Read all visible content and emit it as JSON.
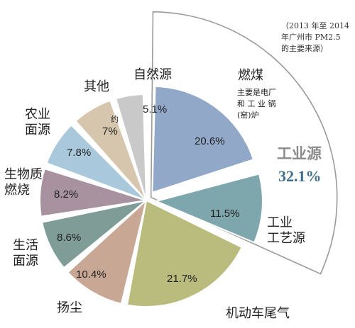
{
  "chart_data": {
    "type": "pie",
    "annotation_lines": [
      "（2013 年至 2014",
      "年广州市 PM2.5",
      "的主要来源）"
    ],
    "group": {
      "name": "工业源",
      "value": "32.1%"
    },
    "slices": [
      {
        "id": "coal",
        "label_lines": [
          "燃煤"
        ],
        "sublabel_lines": [
          "主要是电厂",
          "和 工 业 锅",
          "(窑)炉"
        ],
        "value": 20.6,
        "value_text": "20.6%",
        "color": "#92a8c8",
        "group": true
      },
      {
        "id": "industrial-process",
        "label_lines": [
          "工业",
          "工艺源"
        ],
        "value": 11.5,
        "value_text": "11.5%",
        "color": "#7ea6ad",
        "group": true
      },
      {
        "id": "vehicle-exhaust",
        "label_lines": [
          "机动车尾气"
        ],
        "value": 21.7,
        "value_text": "21.7%",
        "color": "#b9bc7d",
        "group": false
      },
      {
        "id": "dust",
        "label_lines": [
          "扬尘"
        ],
        "value": 10.4,
        "value_text": "10.4%",
        "color": "#c9a795",
        "group": false
      },
      {
        "id": "domestic",
        "label_lines": [
          "生活",
          "面源"
        ],
        "value": 8.6,
        "value_text": "8.6%",
        "color": "#7f9d96",
        "group": false
      },
      {
        "id": "biomass",
        "label_lines": [
          "生物质",
          "燃烧"
        ],
        "value": 8.2,
        "value_text": "8.2%",
        "color": "#a8929f",
        "group": false
      },
      {
        "id": "agriculture",
        "label_lines": [
          "农业",
          "面源"
        ],
        "value": 7.8,
        "value_text": "7.8%",
        "color": "#a9c8dc",
        "group": false
      },
      {
        "id": "other",
        "label_lines": [
          "其他"
        ],
        "prefix": "约",
        "value": 7,
        "value_text": "7%",
        "color": "#d6c6ad",
        "group": false
      },
      {
        "id": "natural",
        "label_lines": [
          "自然源"
        ],
        "value": 5.1,
        "value_text": "5.1%",
        "color": "#c9c9c9",
        "group": false
      }
    ]
  }
}
